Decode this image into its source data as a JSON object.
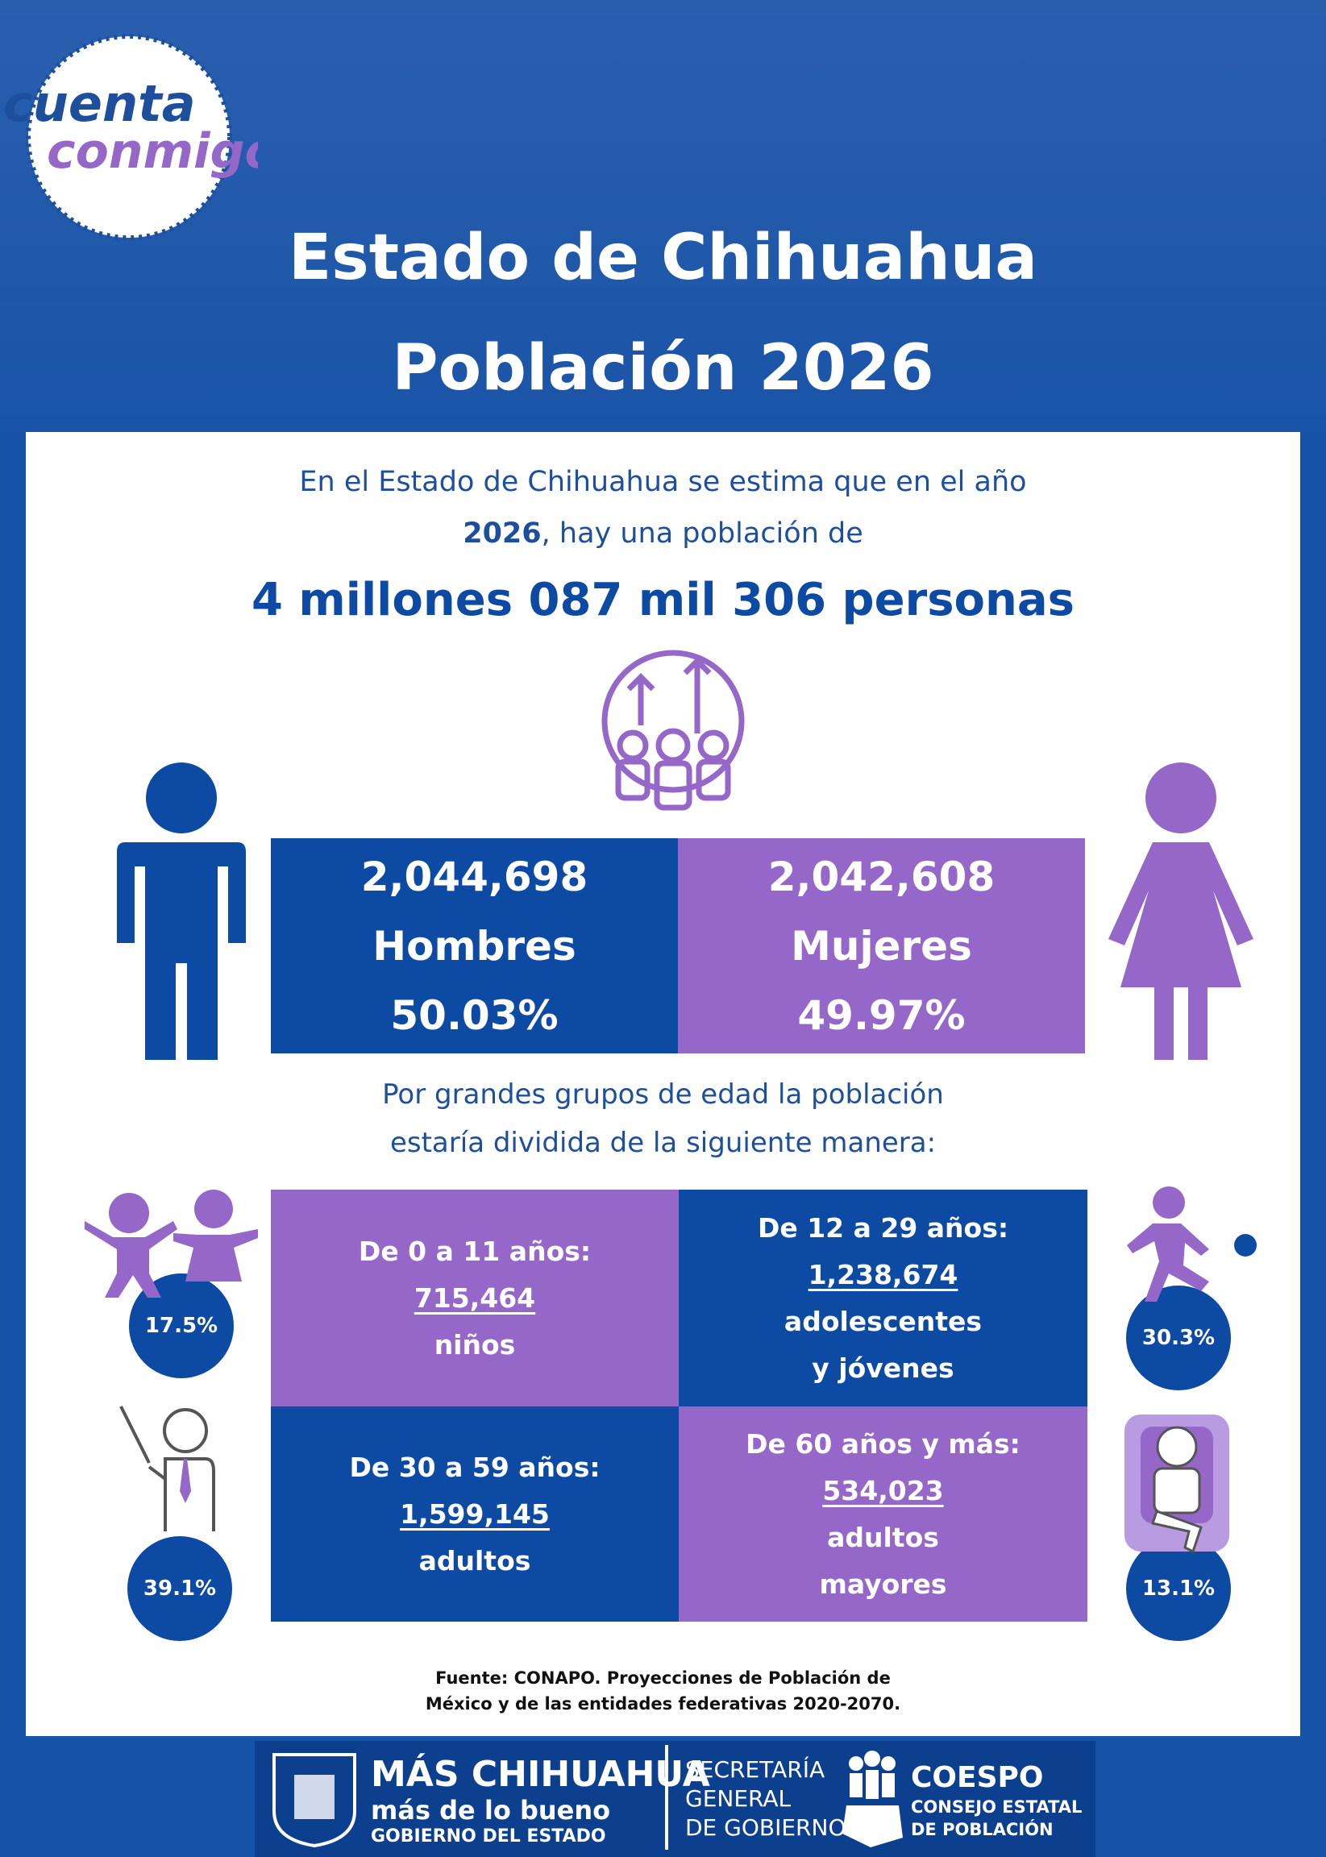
{
  "logo": {
    "line1": "cuenta",
    "line2": "conmigo"
  },
  "header": {
    "title_line1": "Estado de Chihuahua",
    "title_line2": "Población 2026"
  },
  "intro": {
    "line1": "En el Estado de Chihuahua se estima que en el año",
    "line2_bold": "2026",
    "line2_rest": ", hay una población de",
    "total": "4 millones 087 mil 306 personas"
  },
  "sex": [
    {
      "count": "2,044,698",
      "label": "Hombres",
      "percent": "50.03%"
    },
    {
      "count": "2,042,608",
      "label": "Mujeres",
      "percent": "49.97%"
    }
  ],
  "age_intro": {
    "line1": "Por grandes grupos de edad la población",
    "line2": "estaría dividida de la siguiente manera:"
  },
  "age_groups": [
    {
      "range": "De 0 a 11 años:",
      "count": "715,464",
      "label_lines": [
        "niños"
      ],
      "percent": "17.5%"
    },
    {
      "range": "De 12 a 29 años:",
      "count": "1,238,674",
      "label_lines": [
        "adolescentes",
        "y jóvenes"
      ],
      "percent": "30.3%"
    },
    {
      "range": "De 30 a 59 años:",
      "count": "1,599,145",
      "label_lines": [
        "adultos"
      ],
      "percent": "39.1%"
    },
    {
      "range": "De 60 años y más:",
      "count": "534,023",
      "label_lines": [
        "adultos",
        "mayores"
      ],
      "percent": "13.1%"
    }
  ],
  "source": {
    "line1": "Fuente: CONAPO. Proyecciones de Población de",
    "line2": "México y de las entidades federativas 2020-2070."
  },
  "footer": {
    "brand_line1": "MÁS CHIHUAHUA",
    "brand_line2": "más de lo bueno",
    "brand_line3": "GOBIERNO DEL ESTADO",
    "secretaria_line1": "SECRETARÍA",
    "secretaria_line2": "GENERAL",
    "secretaria_line3": "DE GOBIERNO",
    "coespo_name": "COESPO",
    "coespo_line1": "CONSEJO ESTATAL",
    "coespo_line2": "DE POBLACIÓN"
  }
}
